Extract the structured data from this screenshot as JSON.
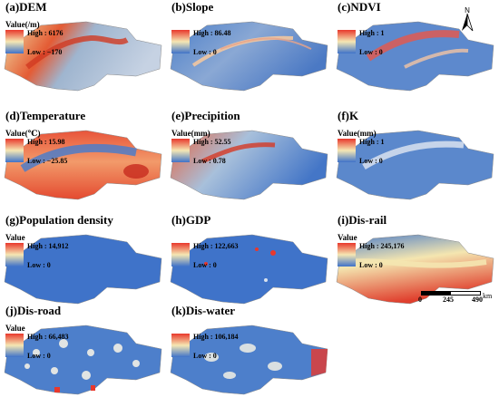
{
  "panels": [
    {
      "id": "dem",
      "title": "(a)DEM",
      "legend_title": "Value(/m)",
      "high": "High : 6176",
      "low": "Low : −170",
      "style": "dem"
    },
    {
      "id": "slope",
      "title": "(b)Slope",
      "legend_title": "",
      "high": "High : 86.48",
      "low": "Low : 0",
      "style": "slope"
    },
    {
      "id": "ndvi",
      "title": "(c)NDVI",
      "legend_title": "",
      "high": "High : 1",
      "low": "Low : 0",
      "style": "ndvi"
    },
    {
      "id": "temp",
      "title": "(d)Temperature",
      "legend_title": "Value(℃)",
      "high": "High : 15.98",
      "low": "Low : −25.85",
      "style": "temp"
    },
    {
      "id": "prec",
      "title": "(e)Precipition",
      "legend_title": "Value(mm)",
      "high": "High : 52.55",
      "low": "Low : 0.78",
      "style": "prec"
    },
    {
      "id": "k",
      "title": "(f)K",
      "legend_title": "Value(mm)",
      "high": "High : 1",
      "low": "Low : 0",
      "style": "k"
    },
    {
      "id": "pop",
      "title": "(g)Population density",
      "legend_title": "Value",
      "high": "High : 14,912",
      "low": "Low : 0",
      "style": "pop"
    },
    {
      "id": "gdp",
      "title": "(h)GDP",
      "legend_title": "",
      "high": "High : 122,663",
      "low": "Low : 0",
      "style": "gdp"
    },
    {
      "id": "rail",
      "title": "(i)Dis-rail",
      "legend_title": "Value",
      "high": "High : 245,176",
      "low": "Low : 0",
      "style": "rail"
    },
    {
      "id": "road",
      "title": "(j)Dis-road",
      "legend_title": "Value",
      "high": "High : 66,483",
      "low": "Low : 0",
      "style": "road"
    },
    {
      "id": "water",
      "title": "(k)Dis-water",
      "legend_title": "",
      "high": "High : 106,184",
      "low": "Low : 0",
      "style": "water"
    }
  ],
  "north_label": "N",
  "scale": {
    "t0": "0",
    "t1": "245",
    "t2": "490",
    "unit": "km"
  },
  "colors": {
    "high": "#e8382c",
    "mid": "#f5e7b3",
    "low": "#3f73c9"
  }
}
